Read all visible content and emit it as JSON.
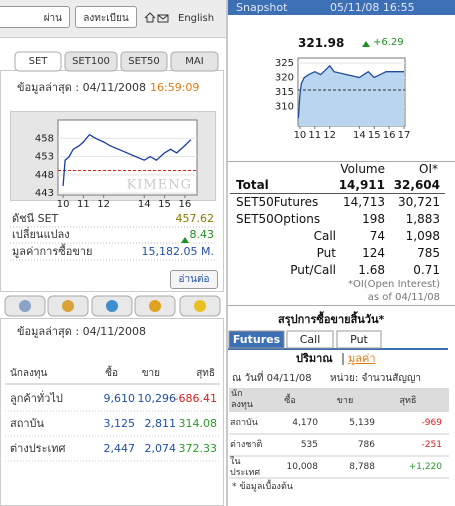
{
  "top_bar": {
    "buttons": [
      "ผ่าน",
      "ลงทะเบียน"
    ],
    "language": "English"
  },
  "market_tabs": [
    "SET",
    "SET100",
    "SET50",
    "MAI"
  ],
  "set_update": {
    "label": "ข้อมูลล่าสุด : 04/11/2008",
    "time": "16:59:09"
  },
  "chart_data": [
    {
      "type": "line",
      "watermark": "KIMENG",
      "x": [
        10,
        10.1,
        10.3,
        10.5,
        10.8,
        11,
        11.3,
        11.6,
        12,
        12.3,
        14,
        14.3,
        14.6,
        15,
        15.3,
        15.6,
        16,
        16.3
      ],
      "values": [
        445,
        452,
        453,
        455,
        456,
        457,
        459,
        458,
        457,
        456,
        452,
        453,
        452,
        454,
        455,
        454,
        456,
        457.62
      ],
      "reference": 449.19,
      "color": "#1a3aa8",
      "xlim": [
        9.75,
        16.6
      ],
      "xticks": [
        10,
        11,
        12,
        14,
        15,
        16
      ],
      "ylim": [
        442.5,
        463
      ],
      "yticks": [
        443,
        448,
        453,
        458
      ]
    },
    {
      "type": "area",
      "x": [
        9.9,
        10,
        10.1,
        10.3,
        10.6,
        11,
        11.4,
        11.8,
        12,
        12.3,
        14,
        14.3,
        14.6,
        15,
        15.4,
        15.8,
        16.2,
        16.6,
        17
      ],
      "values": [
        306,
        314,
        318,
        320,
        321,
        322,
        321,
        323,
        324,
        322,
        320,
        321,
        322,
        320,
        321,
        322,
        322,
        322,
        321.98
      ],
      "reference": 315.69,
      "color": "#1f4f9a",
      "fill": "#b9d5ef",
      "xlim": [
        9.87,
        17.07
      ],
      "xticks": [
        10,
        11,
        12,
        14,
        15,
        16,
        17
      ],
      "ylim": [
        303.3,
        326.7
      ],
      "yticks": [
        310,
        315,
        320,
        325
      ]
    }
  ],
  "set_summary": {
    "rows": [
      [
        "ดัชนี SET",
        "457.62"
      ],
      [
        "เปลี่ยนแปลง",
        "8.43"
      ],
      [
        "มูลค่าการซื้อขาย",
        "15,182.05 M."
      ]
    ],
    "more": "อ่านต่อ"
  },
  "investor_update": "ข้อมูลล่าสุด : 04/11/2008",
  "investor_table": {
    "header": [
      "นักลงทุน",
      "ซื้อ",
      "ขาย",
      "สุทธิ"
    ],
    "rows": [
      [
        "ลูกค้าทั่วไป",
        "9,610",
        "10,296",
        "-686.41"
      ],
      [
        "สถาบัน",
        "3,125",
        "2,811",
        "314.08"
      ],
      [
        "ต่างประเทศ",
        "2,447",
        "2,074",
        "372.33"
      ]
    ]
  },
  "snapshot": {
    "title": "Snapshot",
    "datetime": "05/11/08 16:55",
    "index": "321.98",
    "change": "+6.29"
  },
  "oi_table": {
    "header": [
      "Volume",
      "OI*"
    ],
    "rows": [
      [
        "Total",
        "14,911",
        "32,604"
      ],
      [
        "SET50Futures",
        "14,713",
        "30,721"
      ],
      [
        "SET50Options",
        "198",
        "1,883"
      ],
      [
        "Call",
        "74",
        "1,098"
      ],
      [
        "Put",
        "124",
        "785"
      ],
      [
        "Put/Call",
        "1.68",
        "0.71"
      ]
    ]
  },
  "oi_note": [
    "*OI(Open Interest)",
    "as of 04/11/08"
  ],
  "daily_summary": {
    "title": "สรุปการซื้อขายสิ้นวัน*",
    "tabs": [
      "Futures",
      "Call",
      "Put"
    ],
    "modes": [
      "ปริมาณ",
      "มูลค่า"
    ],
    "date": "ณ วันที่ 04/11/08",
    "unit": "หน่วย: จำนวนสัญญา",
    "header": [
      "นักลงทุน",
      "ซื้อ",
      "ขาย",
      "สุทธิ"
    ],
    "rows": [
      [
        "สถาบัน",
        "4,170",
        "5,139",
        "-969"
      ],
      [
        "ต่างชาติ",
        "535",
        "786",
        "-251"
      ],
      [
        "ในประเทศ",
        "10,008",
        "8,788",
        "+1,220"
      ]
    ],
    "note": "* ข้อมูลเบื้องต้น"
  }
}
